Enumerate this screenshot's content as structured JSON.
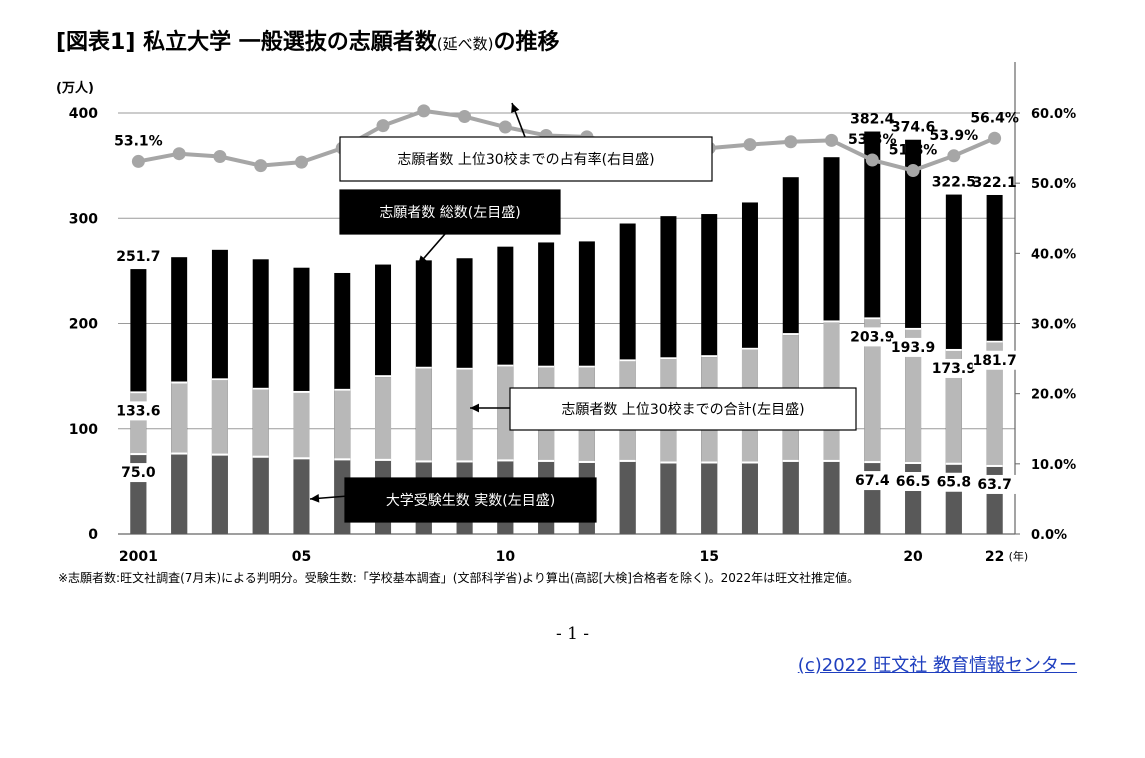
{
  "title": {
    "main": "[図表1] 私立大学 一般選抜の志願者数",
    "paren": "(延べ数)",
    "suffix": "の推移"
  },
  "chart_data": {
    "type": "bar",
    "title": "[図表1] 私立大学 一般選抜の志願者数(延べ数)の推移",
    "categories": [
      "2001",
      "2002",
      "2003",
      "2004",
      "2005",
      "2006",
      "2007",
      "2008",
      "2009",
      "2010",
      "2011",
      "2012",
      "2013",
      "2014",
      "2015",
      "2016",
      "2017",
      "2018",
      "2019",
      "2020",
      "2021",
      "2022"
    ],
    "x_tick_labels": [
      {
        "category": "2001",
        "label": "2001"
      },
      {
        "category": "2005",
        "label": "05"
      },
      {
        "category": "2010",
        "label": "10"
      },
      {
        "category": "2015",
        "label": "15"
      },
      {
        "category": "2020",
        "label": "20"
      },
      {
        "category": "2022",
        "label": "22"
      }
    ],
    "x_unit": "(年)",
    "left_axis": {
      "unit": "(万人)",
      "ticks": [
        0,
        100,
        200,
        300,
        400
      ],
      "range": [
        0,
        400
      ]
    },
    "right_axis": {
      "ticks": [
        "0.0%",
        "10.0%",
        "20.0%",
        "30.0%",
        "40.0%",
        "50.0%",
        "60.0%"
      ],
      "range": [
        0,
        60
      ]
    },
    "series": [
      {
        "name": "志願者数 総数(左目盛)",
        "axis": "left",
        "style": "bar",
        "color": "#000000",
        "values": [
          251.7,
          263,
          270,
          261,
          253,
          248,
          256,
          260,
          262,
          273,
          277,
          278,
          295,
          302,
          304,
          315,
          339,
          358,
          382.4,
          374.6,
          322.5,
          322.1
        ]
      },
      {
        "name": "志願者数 上位30校までの合計(左目盛)",
        "axis": "left",
        "style": "bar",
        "color": "#b8b8b8",
        "values": [
          133.6,
          143,
          146,
          137,
          134,
          136,
          149,
          157,
          156,
          159,
          158,
          158,
          164,
          166,
          168,
          175,
          189,
          201,
          203.9,
          193.9,
          173.9,
          181.7
        ]
      },
      {
        "name": "大学受験生数 実数(左目盛)",
        "axis": "left",
        "style": "bar",
        "color": "#595959",
        "values": [
          75.0,
          75.5,
          74.5,
          72.5,
          71,
          70,
          69.5,
          68,
          68,
          69,
          68.5,
          67.5,
          68.5,
          67,
          67,
          67,
          68.5,
          68.5,
          67.4,
          66.5,
          65.8,
          63.7
        ]
      },
      {
        "name": "志願者数 上位30校までの占有率(右目盛)",
        "axis": "right",
        "style": "line",
        "color": "#a6a6a6",
        "values": [
          53.1,
          54.2,
          53.8,
          52.5,
          53.0,
          55.0,
          58.2,
          60.3,
          59.5,
          58.0,
          56.8,
          56.6,
          55.4,
          54.8,
          55.0,
          55.5,
          55.9,
          56.1,
          53.3,
          51.8,
          53.9,
          56.4
        ]
      }
    ],
    "data_labels": [
      {
        "series": 0,
        "index": 0,
        "text": "251.7"
      },
      {
        "series": 0,
        "index": 18,
        "text": "382.4"
      },
      {
        "series": 0,
        "index": 19,
        "text": "374.6"
      },
      {
        "series": 0,
        "index": 20,
        "text": "322.5"
      },
      {
        "series": 0,
        "index": 21,
        "text": "322.1"
      },
      {
        "series": 1,
        "index": 0,
        "text": "133.6"
      },
      {
        "series": 1,
        "index": 18,
        "text": "203.9"
      },
      {
        "series": 1,
        "index": 19,
        "text": "193.9"
      },
      {
        "series": 1,
        "index": 20,
        "text": "173.9"
      },
      {
        "series": 1,
        "index": 21,
        "text": "181.7"
      },
      {
        "series": 2,
        "index": 0,
        "text": "75.0"
      },
      {
        "series": 2,
        "index": 18,
        "text": "67.4"
      },
      {
        "series": 2,
        "index": 19,
        "text": "66.5"
      },
      {
        "series": 2,
        "index": 20,
        "text": "65.8"
      },
      {
        "series": 2,
        "index": 21,
        "text": "63.7"
      },
      {
        "series": 3,
        "index": 0,
        "text": "53.1%"
      },
      {
        "series": 3,
        "index": 18,
        "text": "53.3%"
      },
      {
        "series": 3,
        "index": 19,
        "text": "51.8%"
      },
      {
        "series": 3,
        "index": 20,
        "text": "53.9%"
      },
      {
        "series": 3,
        "index": 21,
        "text": "56.4%"
      }
    ],
    "grid": true,
    "legend": "callout-annotations"
  },
  "callouts": {
    "share": "志願者数 上位30校までの占有率(右目盛)",
    "total": "志願者数 総数(左目盛)",
    "top30": "志願者数 上位30校までの合計(左目盛)",
    "examinees": "大学受験生数 実数(左目盛)"
  },
  "footnote": "※志願者数:旺文社調査(7月末)による判明分。受験生数:「学校基本調査」(文部科学省)より算出(高認[大検]合格者を除く)。2022年は旺文社推定値。",
  "page_number": "- 1 -",
  "copyright": "(c)2022 旺文社 教育情報センター"
}
